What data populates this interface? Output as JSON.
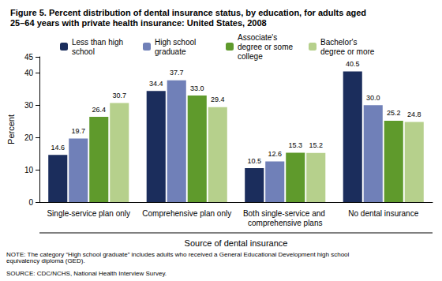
{
  "chart_data": {
    "type": "bar",
    "title": "Figure 5. Percent distribution of dental insurance status, by education, for adults aged 25–64 years with private health insurance: United States, 2008",
    "x_label": "Source of dental insurance",
    "y_label": "Percent",
    "categories": [
      "Single-service plan only",
      "Comprehensive plan only",
      "Both single-service and comprehensive plans",
      "No dental insurance"
    ],
    "series": [
      {
        "name": "Less than high school",
        "color": "#1b2d5c",
        "values": [
          14.6,
          34.4,
          10.5,
          40.5
        ],
        "value_labels": [
          "14.6",
          "34.4",
          "10.5",
          "40.5"
        ]
      },
      {
        "name": "High school graduate",
        "color": "#7080b8",
        "values": [
          19.7,
          37.7,
          12.6,
          30.0
        ],
        "value_labels": [
          "19.7",
          "37.7",
          "12.6",
          "30.0"
        ]
      },
      {
        "name": "Associate's degree or some college",
        "color": "#5f9a2c",
        "values": [
          26.4,
          33.0,
          15.3,
          25.2
        ],
        "value_labels": [
          "26.4",
          "33.0",
          "15.3",
          "25.2"
        ]
      },
      {
        "name": "Bachelor's degree or more",
        "color": "#b6d08c",
        "values": [
          30.7,
          29.4,
          15.2,
          24.8
        ],
        "value_labels": [
          "30.7",
          "29.4",
          "15.2",
          "24.8"
        ]
      }
    ],
    "ylim": [
      0,
      45
    ],
    "yticks": [
      0,
      10,
      20,
      30,
      40
    ],
    "grid": false,
    "legend": "top",
    "data_labels": true,
    "annotations": [
      "NOTE: The category “High school graduate” includes adults who received a General Educational Development high school equivalency diploma (GED).",
      "SOURCE: CDC/NCHS, National Health Interview Survey."
    ]
  }
}
